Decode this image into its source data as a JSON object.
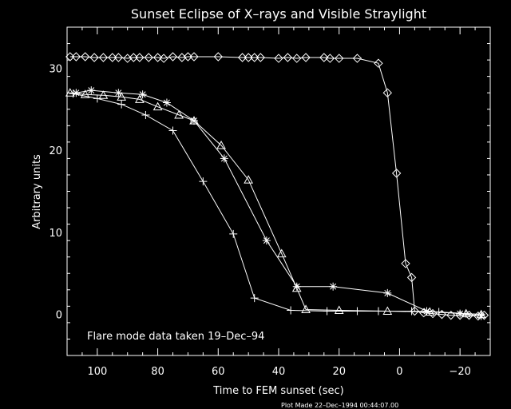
{
  "chart_data": {
    "type": "line",
    "title": "Sunset Eclipse of X–rays and Visible Straylight",
    "xlabel": "Time to FEM sunset (sec)",
    "ylabel": "Arbitrary units",
    "xlim": [
      110,
      -30
    ],
    "ylim": [
      -5,
      35
    ],
    "x_ticks": [
      100,
      80,
      60,
      40,
      20,
      0,
      -20
    ],
    "x_tick_labels": [
      "100",
      "80",
      "60",
      "40",
      "20",
      "0",
      "−20"
    ],
    "y_ticks": [
      0,
      10,
      20,
      30
    ],
    "y_tick_labels": [
      "0",
      "10",
      "20",
      "30"
    ],
    "annotation": "Flare mode data taken 19–Dec–94",
    "footer": "Plot Made 22–Dec–1994 00:44:07.00",
    "series": [
      {
        "marker": "diamond",
        "x": [
          109,
          107,
          104,
          101,
          98,
          95,
          93,
          90,
          88,
          86,
          83,
          80,
          78,
          75,
          72,
          70,
          68,
          60,
          52,
          50,
          48,
          46,
          40,
          37,
          34,
          31,
          25,
          23,
          20,
          14,
          7,
          4,
          1,
          -2,
          -4,
          -5,
          -8,
          -11,
          -14,
          -17,
          -20,
          -23,
          -26,
          -28
        ],
        "y": [
          31.4,
          31.4,
          31.4,
          31.3,
          31.3,
          31.3,
          31.3,
          31.2,
          31.3,
          31.3,
          31.3,
          31.3,
          31.2,
          31.4,
          31.3,
          31.4,
          31.4,
          31.4,
          31.3,
          31.3,
          31.3,
          31.3,
          31.2,
          31.3,
          31.2,
          31.3,
          31.3,
          31.2,
          31.2,
          31.2,
          30.6,
          27.0,
          17.2,
          6.2,
          4.5,
          0.4,
          0.2,
          0.1,
          0.0,
          -0.1,
          -0.1,
          -0.1,
          -0.2,
          -0.1
        ]
      },
      {
        "marker": "asterisk",
        "x": [
          107,
          102,
          93,
          85,
          77,
          68,
          58,
          44,
          34,
          22,
          4,
          -9,
          -20,
          -27
        ],
        "y": [
          27.0,
          27.3,
          27.0,
          26.8,
          25.8,
          23.6,
          19.0,
          9.0,
          3.4,
          3.4,
          2.6,
          0.4,
          0.1,
          -0.2
        ]
      },
      {
        "marker": "triangle",
        "x": [
          109,
          104,
          98,
          92,
          86,
          80,
          73,
          68,
          59,
          50,
          39,
          34,
          31,
          20,
          4,
          -10,
          -22,
          -27
        ],
        "y": [
          27.0,
          26.8,
          26.7,
          26.5,
          26.2,
          25.3,
          24.3,
          23.6,
          20.6,
          16.4,
          7.4,
          3.2,
          0.6,
          0.5,
          0.4,
          0.3,
          0.1,
          0.0
        ]
      },
      {
        "marker": "plus",
        "x": [
          108,
          100,
          92,
          84,
          75,
          65,
          55,
          48,
          36,
          24,
          14,
          7,
          -4,
          -13,
          -22,
          -27
        ],
        "y": [
          26.9,
          26.3,
          25.6,
          24.3,
          22.4,
          16.2,
          9.8,
          2.0,
          0.5,
          0.4,
          0.4,
          0.4,
          0.4,
          0.3,
          0.1,
          0.0
        ]
      }
    ]
  }
}
